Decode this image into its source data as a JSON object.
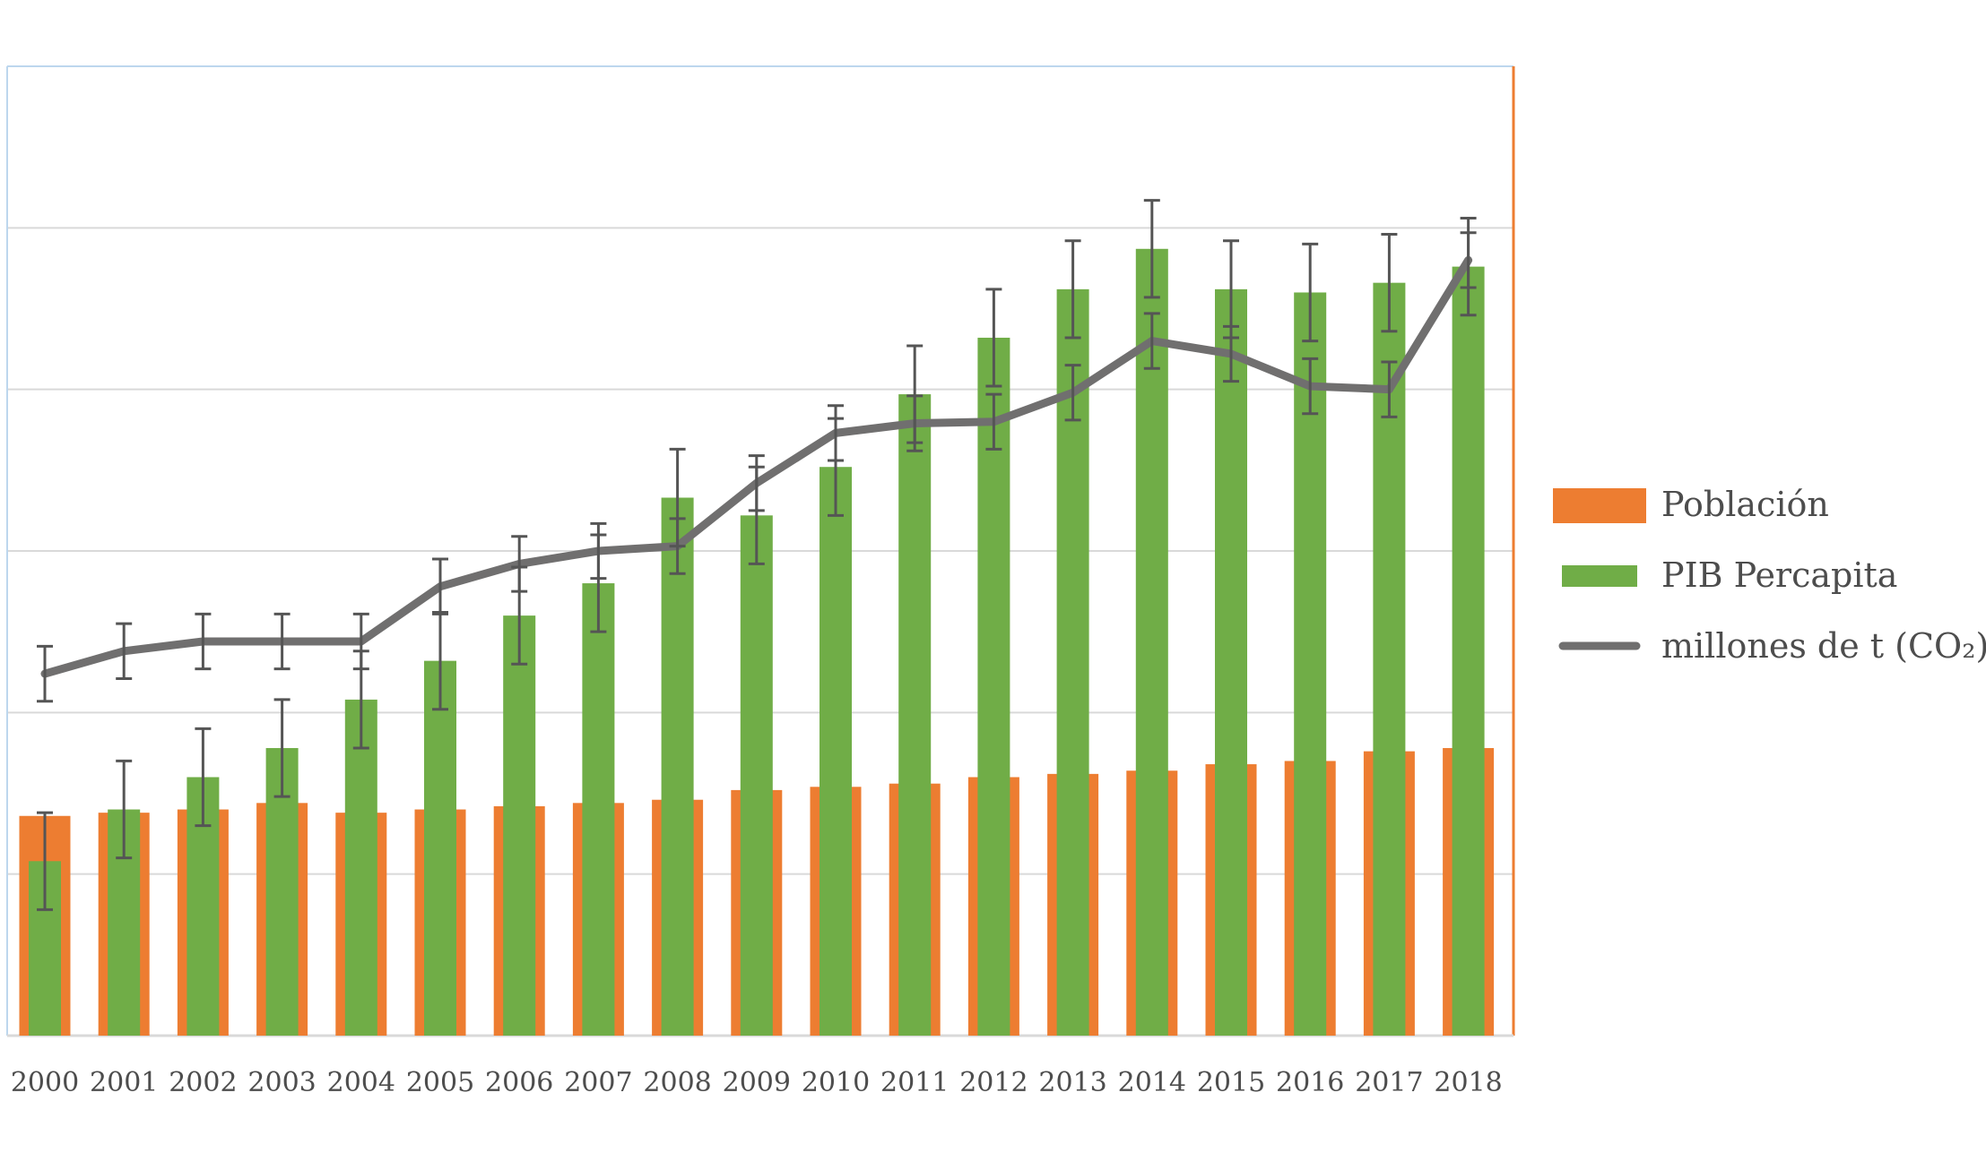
{
  "chart_data": {
    "type": "bar",
    "categories": [
      "2000",
      "2001",
      "2002",
      "2003",
      "2004",
      "2005",
      "2006",
      "2007",
      "2008",
      "2009",
      "2010",
      "2011",
      "2012",
      "2013",
      "2014",
      "2015",
      "2016",
      "2017",
      "2018"
    ],
    "ylim": [
      0,
      6
    ],
    "gridlines": [
      1,
      2,
      3,
      4,
      5
    ],
    "series": [
      {
        "name": "Población",
        "kind": "bar",
        "color": "#ED7D31",
        "values": [
          1.36,
          1.38,
          1.4,
          1.44,
          1.38,
          1.4,
          1.42,
          1.44,
          1.46,
          1.52,
          1.54,
          1.56,
          1.6,
          1.62,
          1.64,
          1.68,
          1.7,
          1.76,
          1.78
        ]
      },
      {
        "name": "PIB Percapita",
        "kind": "bar",
        "color": "#70AD47",
        "values": [
          1.08,
          1.4,
          1.6,
          1.78,
          2.08,
          2.32,
          2.6,
          2.8,
          3.33,
          3.22,
          3.52,
          3.97,
          4.32,
          4.62,
          4.87,
          4.62,
          4.6,
          4.66,
          4.76
        ],
        "error": [
          0.3,
          0.3,
          0.3,
          0.3,
          0.3,
          0.3,
          0.3,
          0.3,
          0.3,
          0.3,
          0.3,
          0.3,
          0.3,
          0.3,
          0.3,
          0.3,
          0.3,
          0.3,
          0.3
        ]
      },
      {
        "name": "millones de t (CO₂)",
        "kind": "line",
        "color": "#706F6F",
        "values": [
          2.24,
          2.38,
          2.44,
          2.44,
          2.44,
          2.78,
          2.92,
          3.0,
          3.03,
          3.42,
          3.73,
          3.79,
          3.8,
          3.98,
          4.3,
          4.22,
          4.02,
          4.0,
          4.8
        ],
        "error": [
          0.17,
          0.17,
          0.17,
          0.17,
          0.17,
          0.17,
          0.17,
          0.17,
          0.17,
          0.17,
          0.17,
          0.17,
          0.17,
          0.17,
          0.17,
          0.17,
          0.17,
          0.17,
          0.17
        ]
      }
    ],
    "legend": {
      "position": "right",
      "items": [
        "Población",
        "PIB Percapita",
        "millones de t (CO₂)"
      ]
    },
    "colors": {
      "grid": "#D9D9D9",
      "left_axis": "#BDD7EE",
      "right_axis": "#ED7D31",
      "text": "#4D4D4D",
      "error_bar": "#555555"
    }
  }
}
